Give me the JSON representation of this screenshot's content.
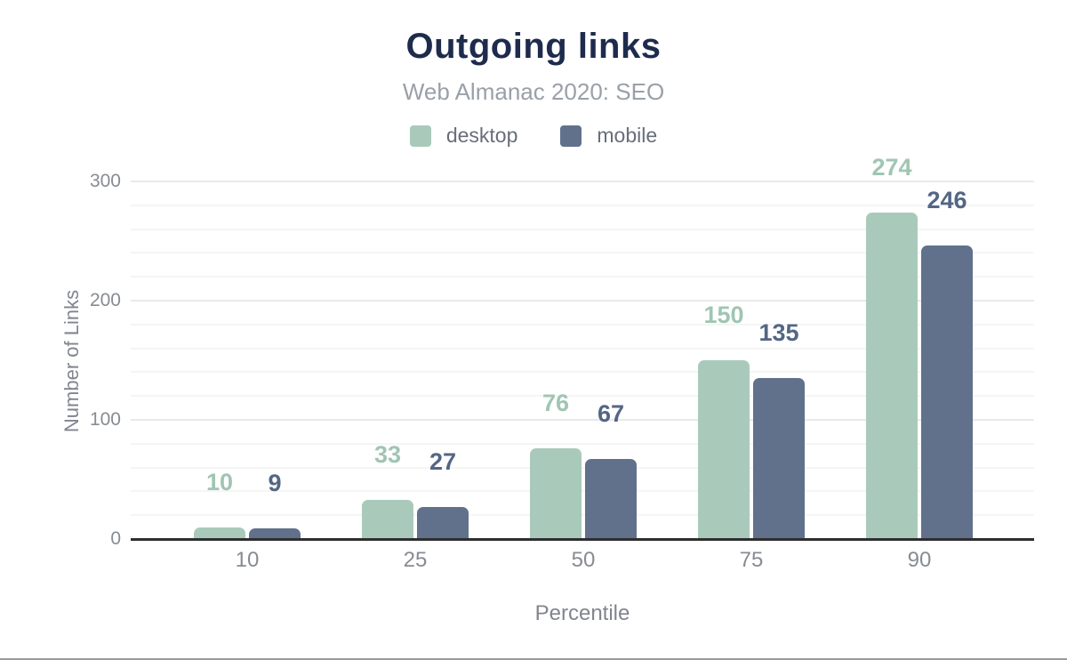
{
  "chart_data": {
    "type": "bar",
    "title": "Outgoing links",
    "subtitle": "Web Almanac 2020: SEO",
    "categories": [
      "10",
      "25",
      "50",
      "75",
      "90"
    ],
    "series": [
      {
        "name": "desktop",
        "values": [
          10,
          33,
          76,
          150,
          274
        ],
        "color": "#a9cabb",
        "label_color": "#a0c5b3"
      },
      {
        "name": "mobile",
        "values": [
          9,
          27,
          67,
          135,
          246
        ],
        "color": "#61718c",
        "label_color": "#546684"
      }
    ],
    "xlabel": "Percentile",
    "ylabel": "Number of Links",
    "ylim": [
      0,
      300
    ],
    "yticks": [
      0,
      100,
      200,
      300
    ],
    "minor_grid_step": 20,
    "grid": true,
    "legend_position": "top",
    "bar_value_labels": true
  },
  "colors": {
    "title": "#1f2b4d",
    "subtitle": "#9aa0a8",
    "legend_text": "#676e7a",
    "tick_labels": "#878b93",
    "axis_titles": "#81858e",
    "major_gridline": "#e8e9eb",
    "minor_gridline": "#f5f5f6",
    "baseline": "#2e2e2e",
    "desktop": "#a9cabb",
    "mobile": "#61718c"
  }
}
